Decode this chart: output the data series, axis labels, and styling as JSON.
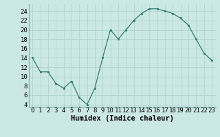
{
  "x": [
    0,
    1,
    2,
    3,
    4,
    5,
    6,
    7,
    8,
    9,
    10,
    11,
    12,
    13,
    14,
    15,
    16,
    17,
    18,
    19,
    20,
    21,
    22,
    23
  ],
  "y": [
    14,
    11,
    11,
    8.5,
    7.5,
    9,
    5.5,
    4,
    7.5,
    14,
    20,
    18,
    20,
    22,
    23.5,
    24.5,
    24.5,
    24,
    23.5,
    22.5,
    21,
    18,
    15,
    13.5
  ],
  "line_color": "#2d7d6f",
  "marker_color": "#2d7d6f",
  "bg_color": "#cce8e4",
  "grid_color": "#b0d4cf",
  "xlabel": "Humidex (Indice chaleur)",
  "ylim": [
    3.5,
    25.5
  ],
  "xlim": [
    -0.5,
    23.5
  ],
  "yticks": [
    4,
    6,
    8,
    10,
    12,
    14,
    16,
    18,
    20,
    22,
    24
  ],
  "xticks": [
    0,
    1,
    2,
    3,
    4,
    5,
    6,
    7,
    8,
    9,
    10,
    11,
    12,
    13,
    14,
    15,
    16,
    17,
    18,
    19,
    20,
    21,
    22,
    23
  ],
  "xtick_labels": [
    "0",
    "1",
    "2",
    "3",
    "4",
    "5",
    "6",
    "7",
    "8",
    "9",
    "10",
    "11",
    "12",
    "13",
    "14",
    "15",
    "16",
    "17",
    "18",
    "19",
    "20",
    "21",
    "22",
    "23"
  ],
  "font_size": 6.5,
  "xlabel_fontsize": 7.5
}
